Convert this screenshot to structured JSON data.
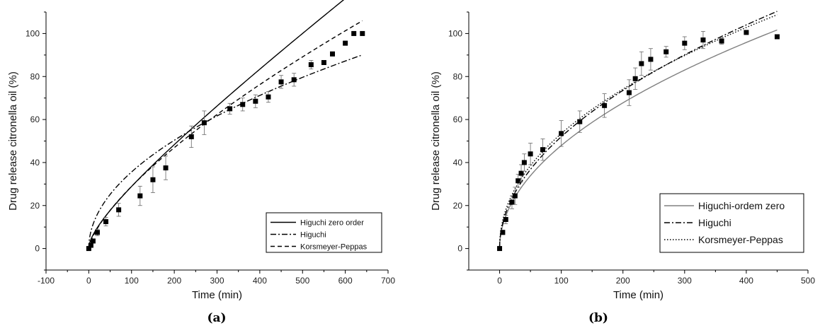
{
  "chart_data": [
    {
      "type": "scatter",
      "panel_label": "(a)",
      "xlabel": "Time (min)",
      "ylabel": "Drug release citronella oil (%)",
      "xlim": [
        -100,
        700
      ],
      "ylim": [
        -10,
        110
      ],
      "xticks": [
        -100,
        0,
        100,
        200,
        300,
        400,
        500,
        600,
        700
      ],
      "yticks": [
        0,
        20,
        40,
        60,
        80,
        100
      ],
      "grid": false,
      "legend_position": "bottom-right",
      "points": {
        "x": [
          0,
          5,
          10,
          20,
          40,
          70,
          120,
          150,
          180,
          240,
          270,
          330,
          360,
          390,
          420,
          450,
          480,
          520,
          550,
          570,
          600,
          620,
          640
        ],
        "y": [
          0,
          1.5,
          3.5,
          7.5,
          12.5,
          18,
          24.5,
          32,
          37.5,
          52,
          58.5,
          65,
          67,
          68.5,
          70.5,
          77.5,
          78.5,
          85.5,
          86.5,
          90.5,
          95.5,
          100,
          100
        ],
        "err": [
          0,
          0.5,
          1,
          1.5,
          2,
          3,
          4.5,
          6,
          5.5,
          5,
          5.5,
          2.5,
          3,
          3,
          2.5,
          3,
          3,
          2,
          1,
          1,
          1,
          0.5,
          0.5
        ]
      },
      "series": [
        {
          "name": "Higuchi zero order",
          "style": "solid",
          "model": "higuchi_zero",
          "params": {
            "a": 1.6,
            "b": 0.1285
          },
          "x_range": [
            0,
            640
          ]
        },
        {
          "name": "Higuchi",
          "style": "dashdot",
          "model": "power",
          "params": {
            "k": 3.56,
            "n": 0.5
          },
          "x_range": [
            0,
            640
          ]
        },
        {
          "name": "Korsmeyer-Peppas",
          "style": "dashed",
          "model": "power",
          "params": {
            "k": 1.15,
            "n": 0.7
          },
          "x_range": [
            0,
            640
          ]
        }
      ]
    },
    {
      "type": "scatter",
      "panel_label": "(b)",
      "xlabel": "Time (min)",
      "ylabel": "Drug release citronella oil (%)",
      "xlim": [
        -50,
        500
      ],
      "ylim": [
        -10,
        110
      ],
      "xticks": [
        0,
        100,
        200,
        300,
        400,
        500
      ],
      "yticks": [
        0,
        20,
        40,
        60,
        80,
        100
      ],
      "grid": false,
      "legend_position": "bottom-right",
      "points": {
        "x": [
          0,
          5,
          10,
          20,
          25,
          30,
          35,
          40,
          50,
          70,
          100,
          130,
          170,
          210,
          220,
          230,
          245,
          270,
          300,
          330,
          360,
          400,
          450
        ],
        "y": [
          0,
          7.5,
          13.5,
          21.5,
          24.5,
          31.5,
          35,
          40,
          44,
          46,
          53.5,
          59,
          66.5,
          72.5,
          79,
          86,
          88,
          91.5,
          95.5,
          97,
          96.5,
          100.5,
          98.5
        ],
        "err": [
          0,
          1,
          2,
          3,
          4,
          3,
          4,
          4,
          5,
          5,
          6,
          5,
          5.5,
          6,
          5,
          5.5,
          5,
          2.5,
          3,
          4,
          1.5,
          0.5,
          0
        ]
      },
      "series": [
        {
          "name": "Higuchi-ordem zero",
          "style": "solid",
          "color": "#808080",
          "model": "higuchi_zero",
          "params": {
            "a": 4.79,
            "b": 0.0001
          },
          "x_range": [
            0,
            450
          ]
        },
        {
          "name": "Higuchi",
          "style": "dashdot",
          "color": "#000000",
          "model": "power",
          "params": {
            "k": 5.2,
            "n": 0.5
          },
          "x_range": [
            0,
            450
          ]
        },
        {
          "name": "Korsmeyer-Peppas",
          "style": "dotted",
          "color": "#000000",
          "model": "power",
          "params": {
            "k": 6.08,
            "n": 0.472
          },
          "x_range": [
            0,
            450
          ]
        }
      ]
    }
  ]
}
